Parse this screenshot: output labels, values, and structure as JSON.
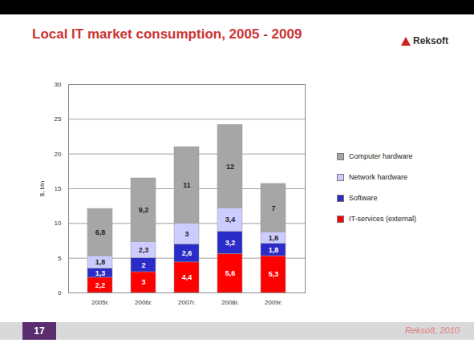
{
  "chart_data": {
    "type": "bar",
    "title": "Local IT market consumption, 2005 - 2009",
    "ylabel": "$, bln",
    "categories": [
      "2005г.",
      "2006г.",
      "2007г.",
      "2008г.",
      "2009г."
    ],
    "series": [
      {
        "name": "IT-services (external)",
        "color": "#ff0000",
        "values": [
          2.2,
          3,
          4.4,
          5.6,
          5.3
        ],
        "value_labels": [
          "2,2",
          "3",
          "4,4",
          "5,6",
          "5,3"
        ]
      },
      {
        "name": "Software",
        "color": "#2b2bc8",
        "values": [
          1.3,
          2,
          2.6,
          3.2,
          1.8
        ],
        "value_labels": [
          "1,3",
          "2",
          "2,6",
          "3,2",
          "1,8"
        ]
      },
      {
        "name": "Network hardware",
        "color": "#ccccff",
        "values": [
          1.8,
          2.3,
          3,
          3.4,
          1.6
        ],
        "value_labels": [
          "1,8",
          "2,3",
          "3",
          "3,4",
          "1,6"
        ]
      },
      {
        "name": "Computer hardware",
        "color": "#a6a6a6",
        "values": [
          6.8,
          9.2,
          11,
          12,
          7
        ],
        "value_labels": [
          "6,8",
          "9,2",
          "11",
          "12",
          "7"
        ]
      }
    ],
    "ylim": [
      0,
      30
    ],
    "yticks": [
      0,
      5,
      10,
      15,
      20,
      25,
      30
    ],
    "stacked": true,
    "data_labels": true,
    "grid": true,
    "legend": "right"
  },
  "slide": {
    "logo": "Reksoft",
    "page_number": "17",
    "footer": "Reksoft, 2010"
  }
}
